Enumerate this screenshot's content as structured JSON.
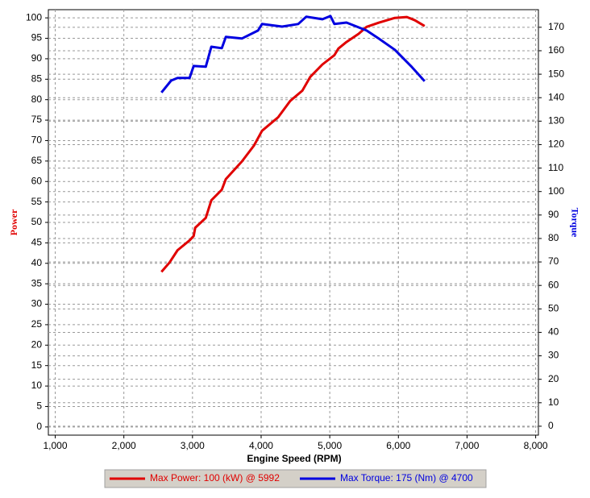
{
  "chart_data": {
    "type": "line",
    "x_label": "Engine Speed (RPM)",
    "y_label": "Power",
    "y2_label": "Torque",
    "xlim": [
      900,
      8040
    ],
    "xticks": [
      {
        "value": 1000,
        "label": "1,000"
      },
      {
        "value": 2000,
        "label": "2,000"
      },
      {
        "value": 3000,
        "label": "3,000"
      },
      {
        "value": 4000,
        "label": "4,000"
      },
      {
        "value": 5000,
        "label": "5,000"
      },
      {
        "value": 6000,
        "label": "6,000"
      },
      {
        "value": 7000,
        "label": "7,000"
      },
      {
        "value": 8000,
        "label": "8,000"
      }
    ],
    "ylim": [
      -2,
      102
    ],
    "yticks": [
      0,
      5,
      10,
      15,
      20,
      25,
      30,
      35,
      40,
      45,
      50,
      55,
      60,
      65,
      70,
      75,
      80,
      85,
      90,
      95,
      100
    ],
    "y2lim": [
      -3.8,
      177.5
    ],
    "y2ticks": [
      0,
      10,
      20,
      30,
      40,
      50,
      60,
      70,
      80,
      90,
      100,
      110,
      120,
      130,
      140,
      150,
      160,
      170
    ],
    "grid": true,
    "series": [
      {
        "name": "Max Power: 100 (kW) @ 5992",
        "color": "#e00000",
        "x": [
          2548,
          2665,
          2782,
          2958,
          3017,
          3040,
          3193,
          3275,
          3427,
          3486,
          3720,
          3896,
          4013,
          4248,
          4424,
          4600,
          4717,
          4893,
          5068,
          5127,
          5244,
          5420,
          5537,
          5713,
          5948,
          6124,
          6241,
          6382
        ],
        "values": [
          37.9,
          40.2,
          43.2,
          45.6,
          46.7,
          48.7,
          51.1,
          55.4,
          58.0,
          60.6,
          64.9,
          68.8,
          72.4,
          75.7,
          79.7,
          82.2,
          85.6,
          88.6,
          90.9,
          92.5,
          94.1,
          96.1,
          97.8,
          98.8,
          100.0,
          100.2,
          99.4,
          98.0
        ]
      },
      {
        "name": "Max Torque: 175 (Nm) @ 4700",
        "color": "#0000e0",
        "axis": "y2",
        "x": [
          2548,
          2688,
          2782,
          2958,
          3017,
          3193,
          3275,
          3427,
          3486,
          3720,
          3955,
          4013,
          4306,
          4541,
          4658,
          4893,
          5010,
          5068,
          5244,
          5537,
          5713,
          5948,
          6182,
          6382
        ],
        "values": [
          142.2,
          147.3,
          148.4,
          148.4,
          153.5,
          153.2,
          161.7,
          161.1,
          165.9,
          165.2,
          168.6,
          171.4,
          170.3,
          171.4,
          174.5,
          173.4,
          174.8,
          171.4,
          172.0,
          168.6,
          165.2,
          160.4,
          153.5,
          147.0
        ]
      }
    ]
  }
}
